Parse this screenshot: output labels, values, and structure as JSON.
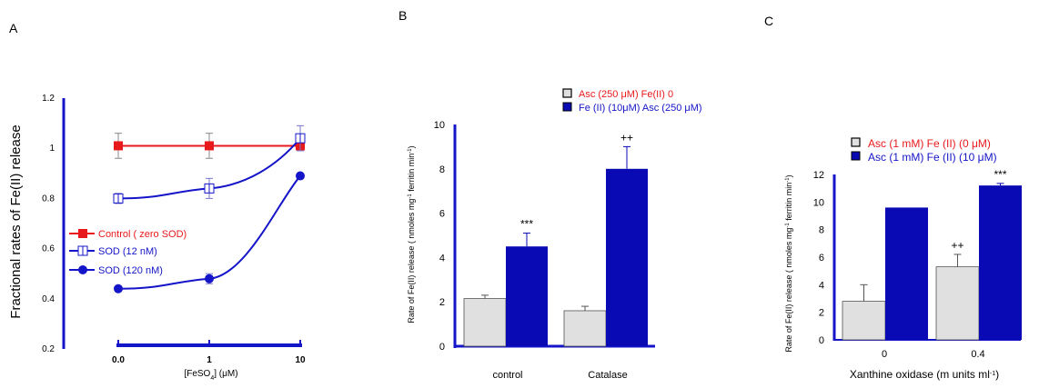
{
  "panels": [
    "A",
    "B",
    "C"
  ],
  "colors": {
    "red": "#e8191b",
    "blue": "#1414c8",
    "navy": "#0a0ab4",
    "gray": "#e0e0e0"
  },
  "chart_data": [
    {
      "panel": "A",
      "type": "line",
      "x_categories": [
        "0.0",
        "1",
        "10"
      ],
      "xlabel": "[FeSO",
      "xlabel_sub": "4",
      "xlabel_tail": "] (μM)",
      "ylabel": "Fractional rates of Fe(II) release",
      "ylim": [
        0.2,
        1.2
      ],
      "yticks": [
        "0.2",
        "0.4",
        "0.6",
        "0.8",
        "1",
        "1.2"
      ],
      "grid": false,
      "legend_position": "center-left",
      "series": [
        {
          "name": "Control ( zero SOD)",
          "values": [
            1.01,
            1.01,
            1.01
          ],
          "errors": [
            0.05,
            0.05,
            0.0
          ],
          "marker": "filled-square",
          "color": "#e8191b"
        },
        {
          "name": "SOD (12 nM)",
          "values": [
            0.8,
            0.84,
            1.04
          ],
          "errors": [
            0.02,
            0.04,
            0.05
          ],
          "marker": "open-square",
          "color": "#1414c8"
        },
        {
          "name": "SOD (120 nM)",
          "values": [
            0.44,
            0.48,
            0.89
          ],
          "errors": [
            0.01,
            0.02,
            0.0
          ],
          "marker": "filled-circle",
          "color": "#1414c8"
        }
      ]
    },
    {
      "panel": "B",
      "type": "bar",
      "categories": [
        "control",
        "Catalase"
      ],
      "ylabel_parts": [
        "Rate of Fe(II) release ( nmoles mg",
        "-1",
        " ferritin min",
        "-1",
        ")"
      ],
      "ylim": [
        0,
        10
      ],
      "yticks": [
        "0",
        "2",
        "4",
        "6",
        "8",
        "10"
      ],
      "grid": false,
      "legend_position": "top-right",
      "series": [
        {
          "name": "Asc (250 μM) Fe(II) 0",
          "values": [
            2.15,
            1.6
          ],
          "errors": [
            0.15,
            0.2
          ],
          "fill": "#e0e0e0",
          "legend_color": "#e8191b"
        },
        {
          "name": "Fe (II) (10μM) Asc (250 μM)",
          "values": [
            4.5,
            8.0
          ],
          "errors": [
            0.6,
            1.0
          ],
          "fill": "#0a0ab4",
          "legend_color": "#1414c8"
        }
      ],
      "annotations": [
        "***",
        "++"
      ]
    },
    {
      "panel": "C",
      "type": "bar",
      "categories": [
        "0",
        "0.4"
      ],
      "xlabel_parts": [
        "Xanthine oxidase (m units ml",
        "-1",
        ")"
      ],
      "ylabel_parts": [
        "Rate of Fe(II) release ( nmoles mg",
        "-1",
        " ferritin min",
        "-1",
        ")"
      ],
      "ylim": [
        0,
        12
      ],
      "yticks": [
        "0",
        "2",
        "4",
        "6",
        "8",
        "10",
        "12"
      ],
      "grid": false,
      "legend_position": "top-right",
      "series": [
        {
          "name": "Asc (1 mM) Fe (II) (0 μM)",
          "values": [
            2.8,
            5.3
          ],
          "errors": [
            1.2,
            0.9
          ],
          "fill": "#e0e0e0",
          "legend_color": "#e8191b"
        },
        {
          "name": "Asc (1 mM) Fe (II) (10 μM)",
          "values": [
            9.6,
            11.2
          ],
          "errors": [
            0.0,
            0.15
          ],
          "fill": "#0a0ab4",
          "legend_color": "#1414c8"
        }
      ],
      "annotations": [
        "++",
        "***"
      ]
    }
  ]
}
